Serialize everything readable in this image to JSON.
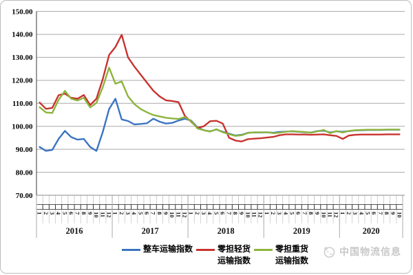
{
  "figure": {
    "watermark": {
      "text": "中国物流信息"
    }
  },
  "chart_data": {
    "type": "line",
    "grid": true,
    "legend_position": "bottom",
    "ylim": [
      70,
      150
    ],
    "ytick_step": 10,
    "ytick_labels": [
      "150.00",
      "140.00",
      "130.00",
      "120.00",
      "110.00",
      "100.00",
      "90.00",
      "80.00",
      "70.00"
    ],
    "years": [
      {
        "label": "2016",
        "months": [
          "1",
          "2",
          "3",
          "4",
          "5",
          "6",
          "7",
          "8",
          "9",
          "10",
          "11",
          "12"
        ]
      },
      {
        "label": "2017",
        "months": [
          "1",
          "2",
          "3",
          "4",
          "5",
          "6",
          "7",
          "8",
          "9",
          "10",
          "11",
          "12"
        ]
      },
      {
        "label": "2018",
        "months": [
          "1",
          "2",
          "3",
          "4",
          "5",
          "6",
          "7",
          "8",
          "9",
          "10",
          "11",
          "12"
        ]
      },
      {
        "label": "2019",
        "months": [
          "1",
          "2",
          "3",
          "4",
          "5",
          "6",
          "7",
          "8",
          "9",
          "10",
          "11",
          "12"
        ]
      },
      {
        "label": "2020",
        "months": [
          "1",
          "2",
          "3",
          "4",
          "5",
          "6",
          "7",
          "8",
          "9",
          "10"
        ]
      }
    ],
    "series": [
      {
        "name": "整车运输指数",
        "color": "#3A74C2",
        "values": [
          91,
          89.3,
          89.7,
          94.5,
          98,
          95.3,
          94.2,
          94.5,
          91,
          89.3,
          97.5,
          107.5,
          112,
          103,
          102.3,
          100.8,
          101,
          101.3,
          103.3,
          102,
          101.2,
          101.5,
          102.5,
          103.3,
          102.5,
          99.5,
          98.3,
          97.8,
          98.6,
          97.6,
          96.8,
          96,
          96.3,
          97.2,
          97.3,
          97.3,
          97.4,
          97.2,
          97.5,
          97.7,
          97.8,
          97.6,
          97.4,
          97.3,
          97.9,
          98.1,
          97.3,
          97.8,
          97.6,
          97.9,
          98.2,
          98.3,
          98.4,
          98.4,
          98.4,
          98.5,
          98.5,
          98.5
        ]
      },
      {
        "name": "零担轻货运输指数",
        "color": "#C8322E",
        "values": [
          110.3,
          107.6,
          108,
          113.5,
          114.2,
          112.4,
          112,
          113.6,
          109.2,
          112,
          120.5,
          131,
          134.5,
          139.8,
          130,
          126,
          122.5,
          119,
          115.5,
          113,
          111.3,
          111,
          110.5,
          104.5,
          102,
          99.3,
          100,
          102.2,
          102.4,
          101.2,
          95,
          93.8,
          93.4,
          94.4,
          94.6,
          94.8,
          95.1,
          95.4,
          96.1,
          96.5,
          96.5,
          96.4,
          96.4,
          96.3,
          96.4,
          96.5,
          96.1,
          95.8,
          94.5,
          96,
          96.3,
          96.4,
          96.4,
          96.4,
          96.4,
          96.5,
          96.5,
          96.5
        ]
      },
      {
        "name": "零担重货运输指数",
        "color": "#8CB43C",
        "values": [
          108.3,
          106,
          105.8,
          111.5,
          115.4,
          112,
          111.2,
          112.4,
          108.2,
          110.2,
          117,
          125.5,
          118.5,
          119.5,
          113,
          109.7,
          107.5,
          106.1,
          104.9,
          104.3,
          103.7,
          103.4,
          103.2,
          104,
          102.3,
          99,
          98.3,
          97.7,
          98.7,
          97.4,
          96.6,
          95.8,
          96.1,
          97.1,
          97.4,
          97.4,
          97.4,
          97,
          97.2,
          97.6,
          97.9,
          97.7,
          97.5,
          97.2,
          97.8,
          98.4,
          97,
          97.9,
          97.3,
          98,
          98.3,
          98.4,
          98.5,
          98.5,
          98.5,
          98.6,
          98.6,
          98.6
        ]
      }
    ],
    "legend": [
      {
        "lines": [
          "整车运输指数"
        ]
      },
      {
        "lines": [
          "零担轻货",
          "运输指数"
        ]
      },
      {
        "lines": [
          "零担重货",
          "运输指数"
        ]
      }
    ]
  }
}
